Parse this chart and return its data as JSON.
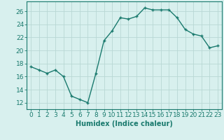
{
  "xlabel": "Humidex (Indice chaleur)",
  "ylabel": "",
  "x": [
    0,
    1,
    2,
    3,
    4,
    5,
    6,
    7,
    8,
    9,
    10,
    11,
    12,
    13,
    14,
    15,
    16,
    17,
    18,
    19,
    20,
    21,
    22,
    23
  ],
  "y": [
    17.5,
    17.0,
    16.5,
    17.0,
    16.0,
    13.0,
    12.5,
    12.0,
    16.5,
    21.5,
    23.0,
    25.0,
    24.8,
    25.2,
    26.5,
    26.2,
    26.2,
    26.2,
    25.0,
    23.2,
    22.5,
    22.2,
    20.4,
    20.7
  ],
  "line_color": "#1a7a6e",
  "marker": "+",
  "marker_color": "#1a7a6e",
  "bg_color": "#d8f0ee",
  "grid_color": "#b8d8d4",
  "tick_color": "#1a7a6e",
  "label_color": "#1a7a6e",
  "ylim": [
    11,
    27.5
  ],
  "xlim": [
    -0.5,
    23.5
  ],
  "yticks": [
    12,
    14,
    16,
    18,
    20,
    22,
    24,
    26
  ],
  "xticks": [
    0,
    1,
    2,
    3,
    4,
    5,
    6,
    7,
    8,
    9,
    10,
    11,
    12,
    13,
    14,
    15,
    16,
    17,
    18,
    19,
    20,
    21,
    22,
    23
  ],
  "xtick_labels": [
    "0",
    "1",
    "2",
    "3",
    "4",
    "5",
    "6",
    "7",
    "8",
    "9",
    "10",
    "11",
    "12",
    "13",
    "14",
    "15",
    "16",
    "17",
    "18",
    "19",
    "20",
    "21",
    "22",
    "23"
  ],
  "linewidth": 1.0,
  "markersize": 3.5,
  "xlabel_fontsize": 7,
  "tick_fontsize": 6.5
}
